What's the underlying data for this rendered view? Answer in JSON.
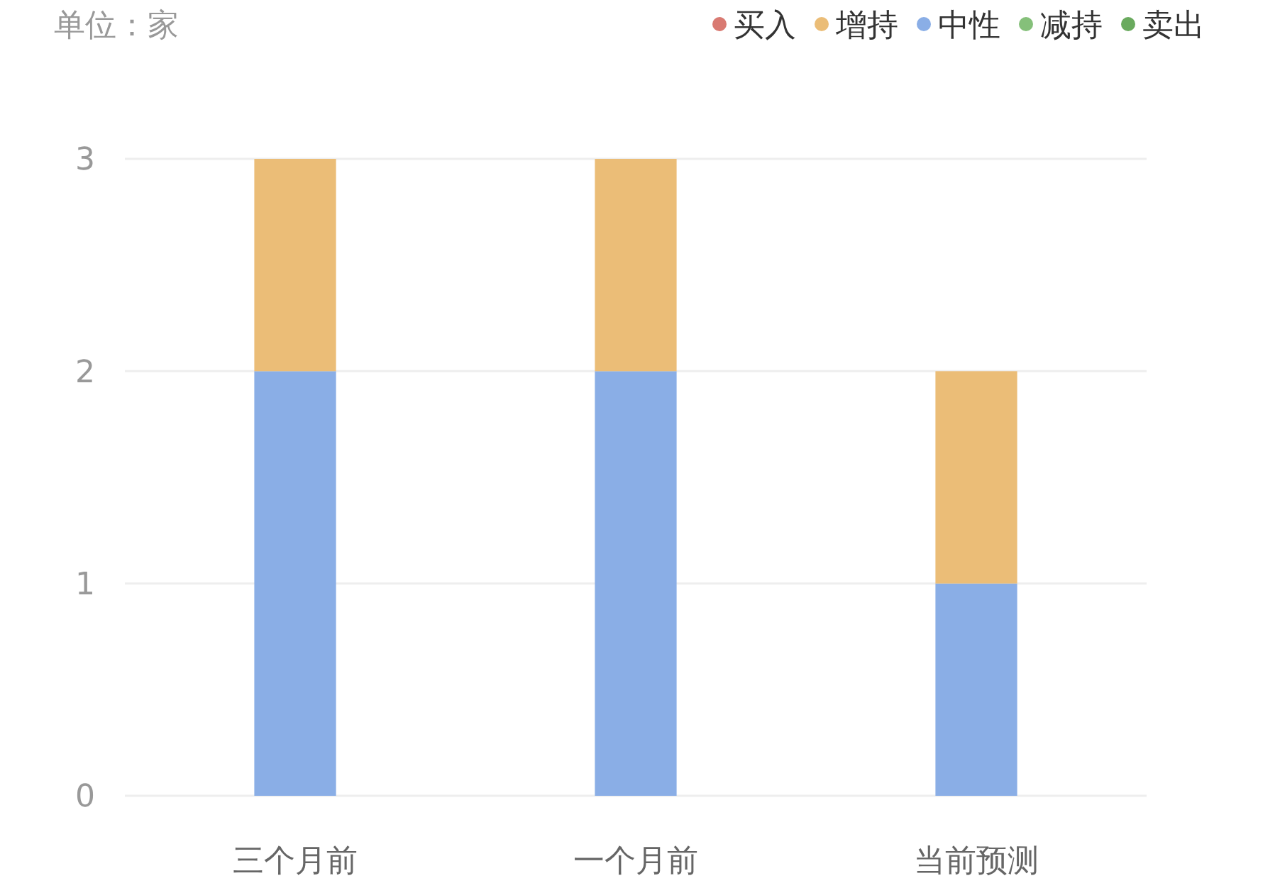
{
  "chart_data": {
    "type": "bar",
    "stacked": true,
    "ylabel": "单位：家",
    "categories": [
      "三个月前",
      "一个月前",
      "当前预测"
    ],
    "series": [
      {
        "name": "卖出",
        "color": "#6aaa5e",
        "values": [
          0,
          0,
          0
        ]
      },
      {
        "name": "减持",
        "color": "#85c07a",
        "values": [
          0,
          0,
          0
        ]
      },
      {
        "name": "中性",
        "color": "#8aaee6",
        "values": [
          2,
          2,
          1
        ]
      },
      {
        "name": "增持",
        "color": "#ebbd77",
        "values": [
          1,
          1,
          1
        ]
      },
      {
        "name": "买入",
        "color": "#d97a72",
        "values": [
          0,
          0,
          0
        ]
      }
    ],
    "ylim": [
      0,
      3
    ],
    "yticks": [
      0,
      1,
      2,
      3
    ],
    "grid": "y",
    "legend": "top right"
  }
}
